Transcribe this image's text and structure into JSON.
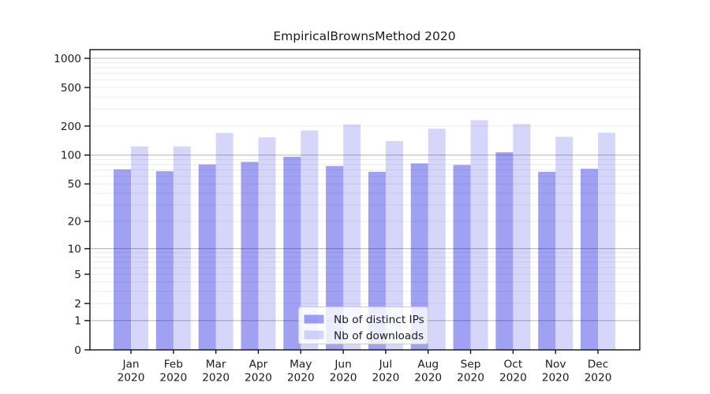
{
  "chart_data": {
    "type": "bar",
    "title": "EmpiricalBrownsMethod 2020",
    "categories": [
      "Jan",
      "Feb",
      "Mar",
      "Apr",
      "May",
      "Jun",
      "Jul",
      "Aug",
      "Sep",
      "Oct",
      "Nov",
      "Dec"
    ],
    "category_year": "2020",
    "series": [
      {
        "name": "Nb of distinct IPs",
        "color": "#0000e1",
        "opacity": 0.37,
        "values": [
          71,
          68,
          80,
          85,
          96,
          77,
          67,
          82,
          79,
          107,
          67,
          72
        ]
      },
      {
        "name": "Nb of downloads",
        "color": "#0000e1",
        "opacity": 0.16,
        "values": [
          123,
          123,
          170,
          153,
          180,
          208,
          140,
          188,
          230,
          210,
          155,
          171
        ]
      }
    ],
    "xlabel": "",
    "ylabel": "",
    "yscale": "log1p",
    "y_ticks": [
      0,
      1,
      2,
      5,
      10,
      20,
      50,
      100,
      200,
      500,
      1000
    ],
    "ylim": [
      0,
      1230
    ],
    "grid": true,
    "legend_position": "lower-center"
  },
  "colors": {
    "major_grid": "#b3b3b3",
    "minor_grid": "#ececec",
    "spine": "#111111",
    "text": "#1c1c1c",
    "legend_border": "#cccccc",
    "legend_bg": "#ffffff"
  }
}
